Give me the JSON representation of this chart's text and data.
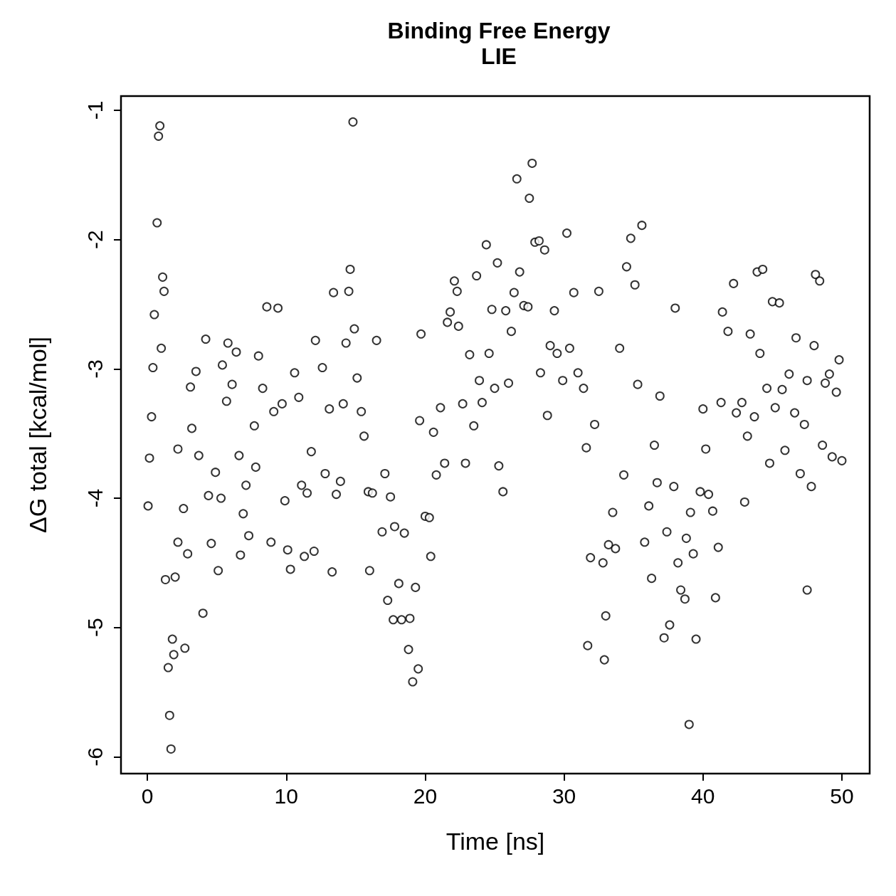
{
  "chart_data": {
    "type": "scatter",
    "title": "Binding Free Energy",
    "subtitle": "LIE",
    "xlabel": "Time [ns]",
    "ylabel": "ΔG total [kcal/mol]",
    "marker": "circle",
    "grid": false,
    "color": "#000000",
    "xlim": [
      -1.9,
      52
    ],
    "xticks": [
      0,
      10,
      20,
      30,
      40,
      50
    ],
    "ylim": [
      -6.13,
      -0.89
    ],
    "yticks": [
      -6,
      -5,
      -4,
      -3,
      -2,
      -1
    ],
    "x": [
      0.05,
      0.15,
      0.3,
      0.4,
      0.5,
      0.7,
      0.8,
      0.9,
      1.0,
      1.1,
      1.2,
      1.3,
      1.5,
      1.6,
      1.7,
      1.8,
      1.9,
      2.0,
      2.2,
      2.2,
      2.6,
      2.7,
      2.9,
      3.1,
      3.2,
      3.5,
      3.7,
      4.0,
      4.2,
      4.4,
      4.6,
      4.9,
      5.1,
      5.3,
      5.4,
      5.7,
      5.8,
      6.1,
      6.4,
      6.6,
      6.7,
      6.9,
      7.1,
      7.3,
      7.7,
      7.8,
      8.0,
      8.3,
      8.6,
      8.9,
      9.1,
      9.4,
      9.7,
      9.9,
      10.1,
      10.3,
      10.6,
      10.9,
      11.1,
      11.3,
      11.5,
      11.8,
      12.0,
      12.1,
      12.6,
      12.8,
      13.1,
      13.3,
      13.4,
      13.6,
      13.9,
      14.1,
      14.3,
      14.5,
      14.6,
      14.8,
      14.9,
      15.1,
      15.4,
      15.6,
      15.9,
      16.0,
      16.2,
      16.5,
      16.9,
      17.1,
      17.3,
      17.5,
      17.7,
      17.8,
      18.1,
      18.3,
      18.5,
      18.8,
      18.9,
      19.1,
      19.3,
      19.5,
      19.6,
      19.7,
      20.0,
      20.3,
      20.4,
      20.6,
      20.8,
      21.1,
      21.4,
      21.6,
      21.8,
      22.1,
      22.3,
      22.4,
      22.7,
      22.9,
      23.2,
      23.5,
      23.7,
      23.9,
      24.1,
      24.4,
      24.6,
      24.8,
      25.0,
      25.2,
      25.3,
      25.6,
      25.8,
      26.0,
      26.2,
      26.4,
      26.6,
      26.8,
      27.1,
      27.4,
      27.5,
      27.7,
      27.9,
      28.2,
      28.3,
      28.6,
      28.8,
      29.0,
      29.3,
      29.5,
      29.9,
      30.2,
      30.4,
      30.7,
      31.0,
      31.4,
      31.6,
      31.7,
      31.9,
      32.2,
      32.5,
      32.8,
      32.9,
      33.0,
      33.2,
      33.5,
      33.7,
      34.0,
      34.3,
      34.5,
      34.8,
      35.1,
      35.3,
      35.6,
      35.8,
      36.1,
      36.3,
      36.5,
      36.7,
      36.9,
      37.2,
      37.4,
      37.6,
      37.9,
      38.0,
      38.2,
      38.4,
      38.7,
      38.8,
      39.0,
      39.1,
      39.3,
      39.5,
      39.8,
      40.0,
      40.2,
      40.4,
      40.7,
      40.9,
      41.1,
      41.3,
      41.4,
      41.8,
      42.2,
      42.4,
      42.8,
      43.0,
      43.2,
      43.4,
      43.7,
      43.9,
      44.1,
      44.3,
      44.6,
      44.8,
      45.0,
      45.2,
      45.5,
      45.7,
      45.9,
      46.2,
      46.6,
      46.7,
      47.0,
      47.3,
      47.5,
      47.5,
      47.8,
      48.0,
      48.1,
      48.4,
      48.6,
      48.8,
      49.1,
      49.3,
      49.6,
      49.8,
      50.0
    ],
    "values": [
      -4.06,
      -3.69,
      -3.37,
      -2.99,
      -2.58,
      -1.87,
      -1.2,
      -1.12,
      -2.84,
      -2.29,
      -2.4,
      -4.63,
      -5.31,
      -5.68,
      -5.94,
      -5.09,
      -5.21,
      -4.61,
      -4.34,
      -3.62,
      -4.08,
      -5.16,
      -4.43,
      -3.14,
      -3.46,
      -3.02,
      -3.67,
      -4.89,
      -2.77,
      -3.98,
      -4.35,
      -3.8,
      -4.56,
      -4.0,
      -2.97,
      -3.25,
      -2.8,
      -3.12,
      -2.87,
      -3.67,
      -4.44,
      -4.12,
      -3.9,
      -4.29,
      -3.44,
      -3.76,
      -2.9,
      -3.15,
      -2.52,
      -4.34,
      -3.33,
      -2.53,
      -3.27,
      -4.02,
      -4.4,
      -4.55,
      -3.03,
      -3.22,
      -3.9,
      -4.45,
      -3.96,
      -3.64,
      -4.41,
      -2.78,
      -2.99,
      -3.81,
      -3.31,
      -4.57,
      -2.41,
      -3.97,
      -3.87,
      -3.27,
      -2.8,
      -2.4,
      -2.23,
      -1.09,
      -2.69,
      -3.07,
      -3.33,
      -3.52,
      -3.95,
      -4.56,
      -3.96,
      -2.78,
      -4.26,
      -3.81,
      -4.79,
      -3.99,
      -4.94,
      -4.22,
      -4.66,
      -4.94,
      -4.27,
      -5.17,
      -4.93,
      -5.42,
      -4.69,
      -5.32,
      -3.4,
      -2.73,
      -4.14,
      -4.15,
      -4.45,
      -3.49,
      -3.82,
      -3.3,
      -3.73,
      -2.64,
      -2.56,
      -2.32,
      -2.4,
      -2.67,
      -3.27,
      -3.73,
      -2.89,
      -3.44,
      -2.28,
      -3.09,
      -3.26,
      -2.04,
      -2.88,
      -2.54,
      -3.15,
      -2.18,
      -3.75,
      -3.95,
      -2.55,
      -3.11,
      -2.71,
      -2.41,
      -1.53,
      -2.25,
      -2.51,
      -2.52,
      -1.68,
      -1.41,
      -2.02,
      -2.01,
      -3.03,
      -2.08,
      -3.36,
      -2.82,
      -2.55,
      -2.88,
      -3.09,
      -1.95,
      -2.84,
      -2.41,
      -3.03,
      -3.15,
      -3.61,
      -5.14,
      -4.46,
      -3.43,
      -2.4,
      -4.5,
      -5.25,
      -4.91,
      -4.36,
      -4.11,
      -4.39,
      -2.84,
      -3.82,
      -2.21,
      -1.99,
      -2.35,
      -3.12,
      -1.89,
      -4.34,
      -4.06,
      -4.62,
      -3.59,
      -3.88,
      -3.21,
      -5.08,
      -4.26,
      -4.98,
      -3.91,
      -2.53,
      -4.5,
      -4.71,
      -4.78,
      -4.31,
      -5.75,
      -4.11,
      -4.43,
      -5.09,
      -3.95,
      -3.31,
      -3.62,
      -3.97,
      -4.1,
      -4.77,
      -4.38,
      -3.26,
      -2.56,
      -2.71,
      -2.34,
      -3.34,
      -3.26,
      -4.03,
      -3.52,
      -2.73,
      -3.37,
      -2.25,
      -2.88,
      -2.23,
      -3.15,
      -3.73,
      -2.48,
      -3.3,
      -2.49,
      -3.16,
      -3.63,
      -3.04,
      -3.34,
      -2.76,
      -3.81,
      -3.43,
      -3.09,
      -4.71,
      -3.91,
      -2.82,
      -2.27,
      -2.32,
      -3.59,
      -3.11,
      -3.04,
      -3.68,
      -3.18,
      -2.93,
      -3.71
    ]
  }
}
